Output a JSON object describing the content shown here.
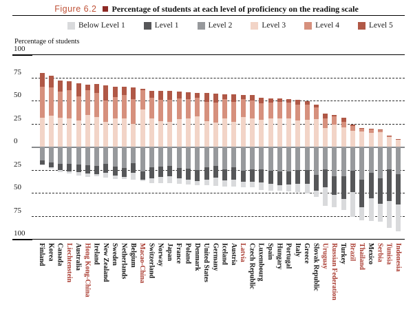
{
  "header": {
    "figure_label": "Figure 6.2",
    "title": "Percentage of students at each level of proficiency on the reading scale"
  },
  "axis": {
    "y_title": "Percentage of students",
    "tick_labels": [
      "100",
      "75",
      "50",
      "25",
      "0",
      "25",
      "50",
      "75",
      "100"
    ]
  },
  "colors": {
    "figure_label": "#bf5136",
    "bullet_square": "#8e2a25",
    "partner_country_label": "#a93b30",
    "oecd_country_label": "#111111"
  },
  "chart_data": {
    "type": "bar",
    "subtype": "diverging-stacked",
    "title": "Percentage of students at each level of proficiency on the reading scale",
    "ylabel": "Percentage of students",
    "ylim": [
      -100,
      100
    ],
    "y_axis_ticks": [
      100,
      75,
      50,
      25,
      0,
      -25,
      -50,
      -75,
      -100
    ],
    "grid": "dashed horizontal at 25-unit steps",
    "legend_position": "top",
    "above_axis_stack_order": [
      "Level 3",
      "Level 4",
      "Level 5"
    ],
    "below_axis_stack_order": [
      "Level 2",
      "Level 1",
      "Below Level 1"
    ],
    "categories": [
      "Finland",
      "Korea",
      "Canada",
      "Liechtenstein",
      "Australia",
      "Hong Kong-China",
      "Ireland",
      "New Zealand",
      "Sweden",
      "Netherlands",
      "Belgium",
      "Macao-China",
      "Switzerland",
      "Norway",
      "Japan",
      "France",
      "Poland",
      "Denmark",
      "United States",
      "Germany",
      "Iceland",
      "Austria",
      "Latvia",
      "Czech Republic",
      "Luxembourg",
      "Spain",
      "Hungary",
      "Portugal",
      "Italy",
      "Greece",
      "Slovak Republic",
      "Uruguay",
      "Russian Federation",
      "Turkey",
      "Brazil",
      "Thailand",
      "Mexico",
      "Serbia",
      "Tunisia",
      "Indonesia"
    ],
    "partner_countries": [
      "Liechtenstein",
      "Hong Kong-China",
      "Macao-China",
      "Latvia",
      "Uruguay",
      "Russian Federation",
      "Brazil",
      "Thailand",
      "Serbia",
      "Tunisia",
      "Indonesia"
    ],
    "series": [
      {
        "name": "Below Level 1",
        "color": "#d9dadc",
        "values": [
          1.1,
          1.4,
          2.3,
          2.5,
          3.6,
          3.5,
          2.7,
          4.8,
          3.9,
          2.1,
          7.8,
          1.3,
          5.0,
          6.4,
          7.4,
          6.3,
          5.0,
          4.6,
          6.5,
          9.3,
          6.7,
          7.3,
          5.8,
          6.5,
          8.2,
          7.4,
          6.1,
          7.6,
          9.1,
          10.2,
          7.0,
          20.1,
          13.3,
          12.5,
          27.0,
          14.0,
          24.9,
          18.9,
          28.6,
          29.5
        ]
      },
      {
        "name": "Level 1",
        "color": "#565759",
        "values": [
          4.6,
          5.4,
          7.3,
          8.0,
          8.2,
          9.0,
          8.3,
          9.7,
          9.5,
          9.8,
          10.2,
          9.0,
          11.6,
          11.7,
          11.6,
          11.2,
          11.8,
          11.9,
          12.9,
          12.9,
          11.9,
          13.5,
          12.2,
          13.0,
          14.6,
          13.7,
          14.4,
          14.3,
          14.8,
          15.0,
          16.7,
          19.8,
          20.4,
          24.3,
          23.0,
          30.0,
          27.1,
          28.0,
          34.3,
          33.0
        ]
      },
      {
        "name": "Level 2",
        "color": "#97999c",
        "values": [
          14.6,
          16.8,
          18.3,
          18.5,
          19.3,
          20.0,
          21.2,
          19.0,
          21.7,
          23.4,
          17.8,
          27.0,
          22.6,
          21.3,
          20.8,
          22.8,
          24.0,
          25.5,
          22.7,
          20.6,
          24.4,
          22.5,
          26.1,
          24.9,
          24.4,
          26.3,
          27.1,
          26.5,
          25.5,
          25.3,
          30.8,
          24.3,
          31.8,
          32.2,
          26.0,
          36.0,
          28.5,
          34.1,
          24.9,
          29.5
        ]
      },
      {
        "name": "Level 3",
        "color": "#f2d4c7",
        "values": [
          31.7,
          33.5,
          31.0,
          30.5,
          28.7,
          34.0,
          32.0,
          26.6,
          30.3,
          30.9,
          24.7,
          40.0,
          30.5,
          27.6,
          27.2,
          29.7,
          30.7,
          33.0,
          27.8,
          26.2,
          30.8,
          26.9,
          32.3,
          30.9,
          28.9,
          30.7,
          30.6,
          30.5,
          28.4,
          29.0,
          29.5,
          20.3,
          24.0,
          20.8,
          16.8,
          16.3,
          15.1,
          15.8,
          10.1,
          7.3
        ]
      },
      {
        "name": "Level 4",
        "color": "#d6907d",
        "values": [
          33.4,
          30.8,
          28.4,
          30.5,
          25.5,
          27.5,
          26.5,
          23.5,
          23.4,
          25.0,
          26.6,
          21.0,
          22.3,
          22.9,
          23.2,
          22.5,
          20.5,
          20.0,
          20.8,
          21.4,
          20.5,
          21.5,
          19.1,
          19.0,
          18.1,
          17.4,
          17.6,
          16.9,
          17.2,
          16.7,
          13.1,
          10.0,
          8.5,
          6.4,
          5.3,
          3.2,
          3.9,
          2.9,
          1.8,
          0.6
        ]
      },
      {
        "name": "Level 5",
        "color": "#b05846",
        "values": [
          14.7,
          12.2,
          12.6,
          10.0,
          14.6,
          6.0,
          9.3,
          16.3,
          11.2,
          8.8,
          12.9,
          1.8,
          8.0,
          10.0,
          9.7,
          7.4,
          8.0,
          5.0,
          9.3,
          9.6,
          5.7,
          8.3,
          4.5,
          5.7,
          5.8,
          4.5,
          4.2,
          4.2,
          5.0,
          3.8,
          2.9,
          5.5,
          2.0,
          3.8,
          1.9,
          0.5,
          0.5,
          0.3,
          0.3,
          0.1
        ]
      }
    ]
  }
}
